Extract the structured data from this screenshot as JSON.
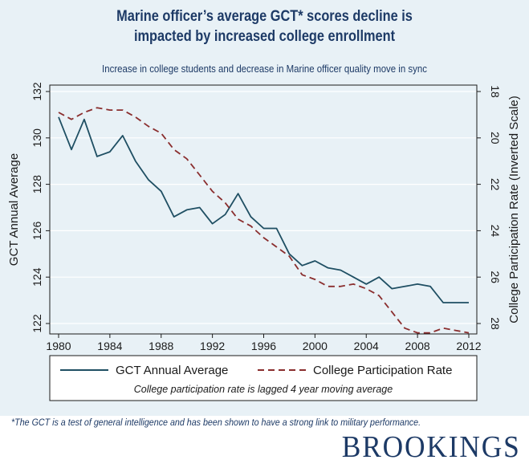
{
  "header": {
    "title_line1": "Marine officer’s average GCT* scores decline is",
    "title_line2": "impacted by increased college enrollment",
    "subtitle": "Increase in college students and decrease in Marine officer quality move in sync"
  },
  "footnote": "*The GCT is a test of general intelligence and has been shown to have a strong link to military performance.",
  "logo": "BROOKINGS",
  "colors": {
    "panel": "#e8f1f6",
    "title": "#1d3a66",
    "gct_line": "#1f4f63",
    "college_line": "#8a2e2e"
  },
  "chart_data": {
    "type": "line",
    "ylabel": "GCT Annual Average",
    "y2label": "College Participation Rate (Inverted Scale)",
    "xlim": [
      1980,
      2012
    ],
    "ylim": [
      122,
      132
    ],
    "y2lim": [
      18,
      28
    ],
    "y2_inverted": true,
    "x_ticks": [
      1980,
      1984,
      1988,
      1992,
      1996,
      2000,
      2004,
      2008,
      2012
    ],
    "y_ticks": [
      122,
      124,
      126,
      128,
      130,
      132
    ],
    "y2_ticks": [
      18,
      20,
      22,
      24,
      26,
      28
    ],
    "x": [
      1980,
      1981,
      1982,
      1983,
      1984,
      1985,
      1986,
      1987,
      1988,
      1989,
      1990,
      1991,
      1992,
      1993,
      1994,
      1995,
      1996,
      1997,
      1998,
      1999,
      2000,
      2001,
      2002,
      2003,
      2004,
      2005,
      2006,
      2007,
      2008,
      2009,
      2010,
      2011,
      2012
    ],
    "series": [
      {
        "name": "GCT Annual Average",
        "axis": "left",
        "style": "solid",
        "values": [
          130.9,
          129.5,
          130.8,
          129.2,
          129.4,
          130.1,
          129.0,
          128.2,
          127.7,
          126.6,
          126.9,
          127.0,
          126.3,
          126.7,
          127.6,
          126.6,
          126.1,
          126.1,
          125.0,
          124.5,
          124.7,
          124.4,
          124.3,
          124.0,
          123.7,
          124.0,
          123.5,
          123.6,
          123.7,
          123.6,
          122.9,
          122.9,
          122.9
        ]
      },
      {
        "name": "College Participation Rate",
        "axis": "right",
        "style": "dashed",
        "values": [
          18.9,
          19.2,
          18.9,
          18.7,
          18.8,
          18.8,
          19.1,
          19.5,
          19.8,
          20.5,
          20.9,
          21.6,
          22.3,
          22.8,
          23.5,
          23.8,
          24.3,
          24.7,
          25.1,
          25.9,
          26.1,
          26.4,
          26.4,
          26.3,
          26.5,
          26.8,
          27.5,
          28.2,
          28.4,
          28.4,
          28.2,
          28.3,
          28.4
        ]
      }
    ],
    "legend": {
      "placement": "bottom",
      "note": "College participation rate is lagged 4 year moving average"
    }
  }
}
